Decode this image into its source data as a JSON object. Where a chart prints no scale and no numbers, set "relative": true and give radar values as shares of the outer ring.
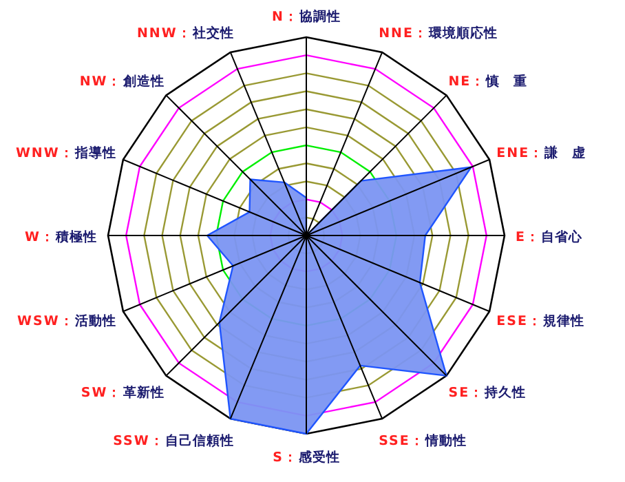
{
  "chart_data": {
    "type": "radar",
    "relative": true,
    "grid": true,
    "categories": [
      "N：協調性",
      "NNE：環境順応性",
      "NE：慎　重",
      "ENE：謙　虚",
      "E：自省心",
      "ESE：規律性",
      "SE：持久性",
      "SSE：情動性",
      "S：感受性",
      "SSW：自己信頼性",
      "SW：革新性",
      "WSW：活動性",
      "W：積極性",
      "WNW：指導性",
      "NW：創造性",
      "NNW：社交性"
    ],
    "series": [
      {
        "color": "#7b95f2",
        "values": [
          0.19,
          0,
          0.39,
          0.9,
          0.6,
          0.62,
          1.0,
          0.71,
          1.0,
          1.0,
          0.62,
          0.4,
          0.5,
          0.31,
          0.4,
          0.29
        ]
      }
    ]
  }
}
